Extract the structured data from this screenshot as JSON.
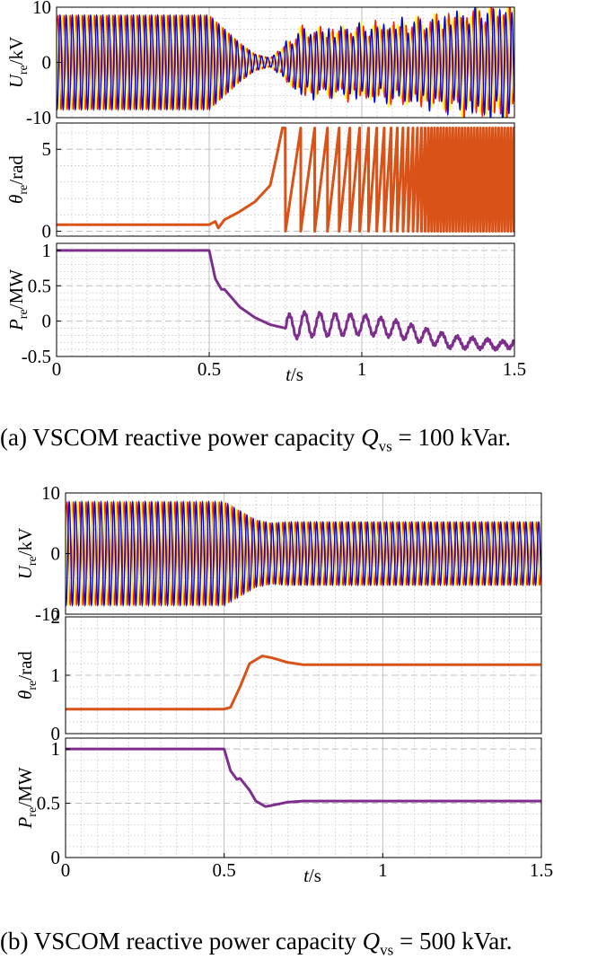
{
  "colors": {
    "phase_a": "#ff1a00",
    "phase_b": "#ffff00",
    "phase_c": "#0000ff",
    "theta": "#d95319",
    "power": "#7e2f8e",
    "grid": "#bfbfbf",
    "axis": "#000000"
  },
  "captions": {
    "a": {
      "prefix": "(a) VSCOM reactive power capacity ",
      "sym": "Q",
      "sub": "vs",
      "suffix": " = 100 kVar."
    },
    "b": {
      "prefix": "(b) VSCOM reactive power capacity ",
      "sym": "Q",
      "sub": "vs",
      "suffix": " = 500 kVar."
    }
  },
  "chart_data": [
    {
      "type": "line",
      "figure": "a",
      "panel": "voltage",
      "ylabel": {
        "sym": "U",
        "sub": "re",
        "unit": "/kV"
      },
      "xlim": [
        0,
        1.5
      ],
      "ylim": [
        -10,
        10
      ],
      "yticks": [
        -10,
        0,
        10
      ],
      "grid": true,
      "series": [
        {
          "phase": "a",
          "color": "#ff1a00"
        },
        {
          "phase": "b",
          "color": "#ffff00"
        },
        {
          "phase": "c",
          "color": "#0000ff"
        }
      ],
      "envelope_x": [
        0,
        0.5,
        0.55,
        0.6,
        0.65,
        0.7,
        0.75,
        0.8,
        0.9,
        1.0,
        1.1,
        1.2,
        1.3,
        1.4,
        1.5
      ],
      "envelope_y": [
        8.5,
        8.5,
        6.0,
        3.5,
        1.5,
        0.8,
        3.0,
        5.5,
        5.5,
        6.0,
        6.5,
        7.0,
        8.0,
        9.0,
        9.5
      ],
      "frequency_hz": 50
    },
    {
      "type": "line",
      "figure": "a",
      "panel": "angle",
      "ylabel": {
        "sym": "θ",
        "sub": "re",
        "unit": "/rad"
      },
      "xlim": [
        0,
        1.5
      ],
      "ylim": [
        -0.3,
        6.6
      ],
      "yticks": [
        0,
        5
      ],
      "grid": true,
      "color": "#d95319",
      "x": [
        0,
        0.5,
        0.52,
        0.53,
        0.55,
        0.6,
        0.65,
        0.7,
        0.72,
        0.74
      ],
      "y": [
        0.4,
        0.4,
        0.6,
        0.2,
        0.7,
        1.2,
        1.8,
        2.8,
        4.5,
        6.3
      ],
      "sawtooth": {
        "start": 0.75,
        "max": 6.3,
        "start_period": 0.05,
        "end_period": 0.01
      }
    },
    {
      "type": "line",
      "figure": "a",
      "panel": "power",
      "ylabel": {
        "sym": "P",
        "sub": "re",
        "unit": "/MW"
      },
      "xlabel": {
        "sym": "t",
        "unit": "/s"
      },
      "xlim": [
        0,
        1.5
      ],
      "ylim": [
        -0.5,
        1.1
      ],
      "yticks": [
        -0.5,
        0,
        0.5,
        1
      ],
      "xticks": [
        0,
        0.5,
        1,
        1.5
      ],
      "grid": true,
      "color": "#7e2f8e",
      "x": [
        0,
        0.5,
        0.52,
        0.54,
        0.55,
        0.6,
        0.65,
        0.7,
        0.75,
        0.8,
        0.9,
        1.0,
        1.1,
        1.2,
        1.3,
        1.4,
        1.48,
        1.5
      ],
      "y": [
        1.0,
        1.0,
        0.6,
        0.45,
        0.45,
        0.2,
        0.05,
        -0.05,
        -0.1,
        -0.05,
        -0.05,
        -0.05,
        -0.1,
        -0.2,
        -0.3,
        -0.32,
        -0.35,
        -0.25
      ],
      "oscillation": {
        "start": 0.75,
        "end": 1.5,
        "amplitude_start": 0.18,
        "amplitude_end": 0.05,
        "frequency_hz": 20
      }
    },
    {
      "type": "line",
      "figure": "b",
      "panel": "voltage",
      "ylabel": {
        "sym": "U",
        "sub": "re",
        "unit": "/kV"
      },
      "xlim": [
        0,
        1.5
      ],
      "ylim": [
        -10,
        10
      ],
      "yticks": [
        -10,
        0,
        10
      ],
      "grid": true,
      "series": [
        {
          "phase": "a",
          "color": "#ff1a00"
        },
        {
          "phase": "b",
          "color": "#ffff00"
        },
        {
          "phase": "c",
          "color": "#0000ff"
        }
      ],
      "envelope_x": [
        0,
        0.5,
        0.55,
        0.6,
        0.65,
        0.7,
        1.5
      ],
      "envelope_y": [
        8.5,
        8.5,
        7.0,
        5.5,
        5.0,
        5.2,
        5.2
      ],
      "frequency_hz": 50
    },
    {
      "type": "line",
      "figure": "b",
      "panel": "angle",
      "ylabel": {
        "sym": "θ",
        "sub": "re",
        "unit": "/rad"
      },
      "xlim": [
        0,
        1.5
      ],
      "ylim": [
        0,
        2
      ],
      "yticks": [
        0,
        1,
        2
      ],
      "grid": true,
      "color": "#d95319",
      "x": [
        0,
        0.5,
        0.52,
        0.55,
        0.58,
        0.62,
        0.65,
        0.7,
        0.75,
        0.8,
        1.5
      ],
      "y": [
        0.42,
        0.42,
        0.45,
        0.8,
        1.2,
        1.33,
        1.3,
        1.22,
        1.18,
        1.18,
        1.18
      ]
    },
    {
      "type": "line",
      "figure": "b",
      "panel": "power",
      "ylabel": {
        "sym": "P",
        "sub": "re",
        "unit": "/MW"
      },
      "xlabel": {
        "sym": "t",
        "unit": "/s"
      },
      "xlim": [
        0,
        1.5
      ],
      "ylim": [
        0,
        1.1
      ],
      "yticks": [
        0,
        0.5,
        1
      ],
      "xticks": [
        0,
        0.5,
        1,
        1.5
      ],
      "grid": true,
      "color": "#7e2f8e",
      "x": [
        0,
        0.5,
        0.52,
        0.54,
        0.55,
        0.58,
        0.6,
        0.63,
        0.65,
        0.7,
        0.75,
        1.5
      ],
      "y": [
        1.0,
        1.0,
        0.8,
        0.72,
        0.73,
        0.62,
        0.52,
        0.47,
        0.48,
        0.51,
        0.52,
        0.52
      ]
    }
  ]
}
